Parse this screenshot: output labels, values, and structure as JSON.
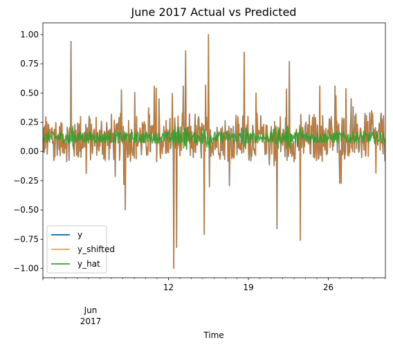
{
  "chart_data": {
    "type": "line",
    "title": "June 2017 Actual vs Predicted",
    "xlabel": "Time",
    "ylabel": "",
    "ylim": [
      -1.08,
      1.1
    ],
    "xlim": [
      "2017-06-01",
      "2017-07-01"
    ],
    "grid": false,
    "legend_position": "lower-left",
    "y_ticks": [
      {
        "value": 1.0,
        "label": "1.00"
      },
      {
        "value": 0.75,
        "label": "0.75"
      },
      {
        "value": 0.5,
        "label": "0.50"
      },
      {
        "value": 0.25,
        "label": "0.25"
      },
      {
        "value": 0.0,
        "label": "0.00"
      },
      {
        "value": -0.25,
        "label": "−0.25"
      },
      {
        "value": -0.5,
        "label": "−0.50"
      },
      {
        "value": -0.75,
        "label": "−0.75"
      },
      {
        "value": -1.0,
        "label": "−1.00"
      }
    ],
    "x_major_ticks": [
      {
        "date": "2017-06-12",
        "label": "12"
      },
      {
        "date": "2017-06-19",
        "label": "19"
      },
      {
        "date": "2017-06-26",
        "label": "26"
      }
    ],
    "x_month_label": [
      "Jun",
      "2017"
    ],
    "series": [
      {
        "name": "y",
        "color": "#1f77b4",
        "approx_range": [
          -1.0,
          1.0
        ]
      },
      {
        "name": "y_shifted",
        "color": "#ff7f0e",
        "approx_range": [
          -1.0,
          1.0
        ]
      },
      {
        "name": "y_hat",
        "color": "#2ca02c",
        "approx_range": [
          0.0,
          0.25
        ]
      }
    ],
    "notable_points": [
      {
        "date": "2017-06-03",
        "value": 0.94
      },
      {
        "date": "2017-06-08",
        "value": -0.5
      },
      {
        "date": "2017-06-12",
        "value": -1.0
      },
      {
        "date": "2017-06-12",
        "value": -0.82
      },
      {
        "date": "2017-06-13",
        "value": 0.86
      },
      {
        "date": "2017-06-15",
        "value": 1.0
      },
      {
        "date": "2017-06-15",
        "value": -0.71
      },
      {
        "date": "2017-06-18",
        "value": 0.85
      },
      {
        "date": "2017-06-21",
        "value": -0.66
      },
      {
        "date": "2017-06-22",
        "value": 0.77
      },
      {
        "date": "2017-06-23",
        "value": -0.76
      },
      {
        "date": "2017-06-25",
        "value": 0.56
      },
      {
        "date": "2017-06-26",
        "value": 0.56
      }
    ]
  }
}
